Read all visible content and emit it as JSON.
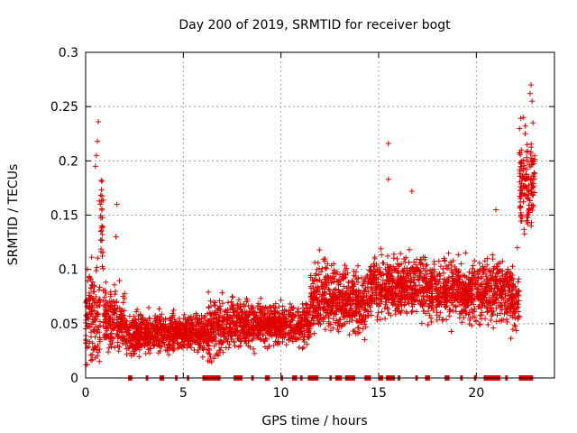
{
  "chart_data": {
    "type": "scatter",
    "title": "Day 200 of 2019, SRMTID for receiver bogt",
    "xlabel": "GPS time / hours",
    "ylabel": "SRMTID / TECUs",
    "xlim": [
      0,
      24
    ],
    "ylim": [
      0,
      0.3
    ],
    "xticks": [
      0,
      5,
      10,
      15,
      20
    ],
    "xtick_labels": [
      "0",
      "5",
      "10",
      "15",
      "20"
    ],
    "yticks": [
      0,
      0.05,
      0.1,
      0.15,
      0.2,
      0.25,
      0.3
    ],
    "ytick_labels": [
      "0",
      "0.05",
      "0.1",
      "0.15",
      "0.2",
      "0.25",
      "0.3"
    ],
    "grid": true,
    "marker": "+",
    "color": "#e00000",
    "segments": [
      {
        "x0": 0.0,
        "x1": 0.75,
        "base": 0.06,
        "spread": 0.05
      },
      {
        "x0": 0.75,
        "x1": 0.9,
        "base": 0.14,
        "spread": 0.05
      },
      {
        "x0": 0.9,
        "x1": 2.0,
        "base": 0.055,
        "spread": 0.03
      },
      {
        "x0": 2.0,
        "x1": 6.2,
        "base": 0.042,
        "spread": 0.02
      },
      {
        "x0": 6.2,
        "x1": 7.2,
        "base": 0.045,
        "spread": 0.03
      },
      {
        "x0": 7.2,
        "x1": 8.7,
        "base": 0.05,
        "spread": 0.025
      },
      {
        "x0": 8.7,
        "x1": 11.5,
        "base": 0.05,
        "spread": 0.02
      },
      {
        "x0": 11.5,
        "x1": 12.4,
        "base": 0.075,
        "spread": 0.035
      },
      {
        "x0": 12.4,
        "x1": 14.5,
        "base": 0.07,
        "spread": 0.03
      },
      {
        "x0": 14.5,
        "x1": 17.5,
        "base": 0.085,
        "spread": 0.03
      },
      {
        "x0": 17.5,
        "x1": 21.7,
        "base": 0.08,
        "spread": 0.03
      },
      {
        "x0": 21.7,
        "x1": 22.2,
        "base": 0.07,
        "spread": 0.03
      },
      {
        "x0": 22.2,
        "x1": 23.0,
        "base": 0.18,
        "spread": 0.05
      }
    ],
    "outliers": [
      {
        "x": 0.65,
        "y": 0.236
      },
      {
        "x": 0.6,
        "y": 0.218
      },
      {
        "x": 0.55,
        "y": 0.205
      },
      {
        "x": 0.5,
        "y": 0.195
      },
      {
        "x": 0.7,
        "y": 0.163
      },
      {
        "x": 0.75,
        "y": 0.16
      },
      {
        "x": 1.6,
        "y": 0.16
      },
      {
        "x": 1.55,
        "y": 0.13
      },
      {
        "x": 15.5,
        "y": 0.216
      },
      {
        "x": 15.5,
        "y": 0.183
      },
      {
        "x": 16.7,
        "y": 0.172
      },
      {
        "x": 22.8,
        "y": 0.27
      },
      {
        "x": 22.75,
        "y": 0.262
      },
      {
        "x": 22.85,
        "y": 0.255
      },
      {
        "x": 22.9,
        "y": 0.235
      },
      {
        "x": 22.4,
        "y": 0.24
      },
      {
        "x": 22.5,
        "y": 0.225
      },
      {
        "x": 22.6,
        "y": 0.215
      },
      {
        "x": 22.3,
        "y": 0.21
      },
      {
        "x": 21.0,
        "y": 0.155
      },
      {
        "x": 22.1,
        "y": 0.12
      }
    ],
    "zero_runs": [
      [
        2.2,
        2.4
      ],
      [
        3.1,
        3.2
      ],
      [
        3.8,
        4.0
      ],
      [
        4.6,
        4.7
      ],
      [
        5.2,
        5.3
      ],
      [
        6.0,
        6.9
      ],
      [
        7.6,
        8.0
      ],
      [
        8.5,
        8.6
      ],
      [
        9.2,
        9.4
      ],
      [
        10.0,
        10.1
      ],
      [
        10.6,
        10.8
      ],
      [
        11.0,
        11.1
      ],
      [
        11.4,
        11.9
      ],
      [
        12.5,
        12.6
      ],
      [
        12.8,
        13.1
      ],
      [
        13.3,
        13.8
      ],
      [
        14.3,
        14.6
      ],
      [
        15.0,
        15.2
      ],
      [
        15.4,
        15.8
      ],
      [
        16.0,
        16.1
      ],
      [
        16.9,
        17.0
      ],
      [
        17.4,
        17.6
      ],
      [
        18.4,
        18.6
      ],
      [
        19.2,
        19.3
      ],
      [
        19.9,
        20.0
      ],
      [
        20.4,
        21.2
      ],
      [
        21.5,
        21.6
      ],
      [
        22.2,
        22.9
      ]
    ]
  }
}
